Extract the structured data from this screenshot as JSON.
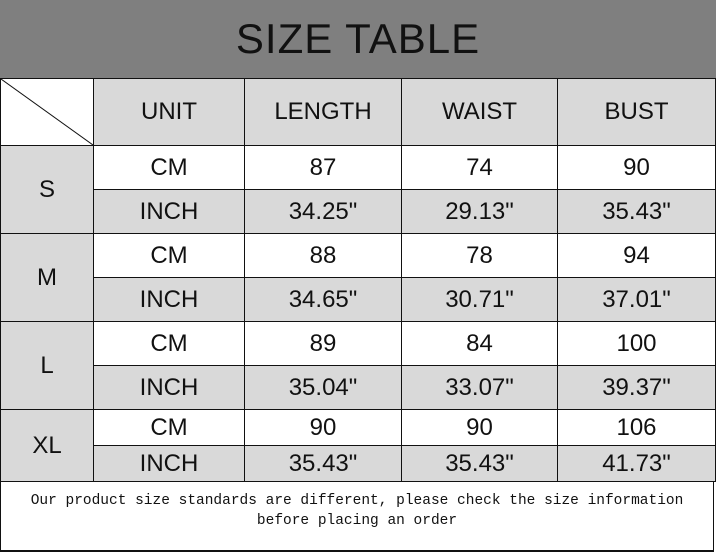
{
  "title": "SIZE TABLE",
  "headers": [
    "UNIT",
    "LENGTH",
    "WAIST",
    "BUST"
  ],
  "sizes": [
    {
      "size": "S",
      "rows": [
        [
          "CM",
          "87",
          "74",
          "90"
        ],
        [
          "INCH",
          "34.25\"",
          "29.13\"",
          "35.43\""
        ]
      ]
    },
    {
      "size": "M",
      "rows": [
        [
          "CM",
          "88",
          "78",
          "94"
        ],
        [
          "INCH",
          "34.65\"",
          "30.71\"",
          "37.01\""
        ]
      ]
    },
    {
      "size": "L",
      "rows": [
        [
          "CM",
          "89",
          "84",
          "100"
        ],
        [
          "INCH",
          "35.04\"",
          "33.07\"",
          "39.37\""
        ]
      ]
    },
    {
      "size": "XL",
      "rows": [
        [
          "CM",
          "90",
          "90",
          "106"
        ],
        [
          "INCH",
          "35.43\"",
          "35.43\"",
          "41.73\""
        ]
      ]
    }
  ],
  "footer_note": "Our product size standards are different, please check the size information before placing an order"
}
